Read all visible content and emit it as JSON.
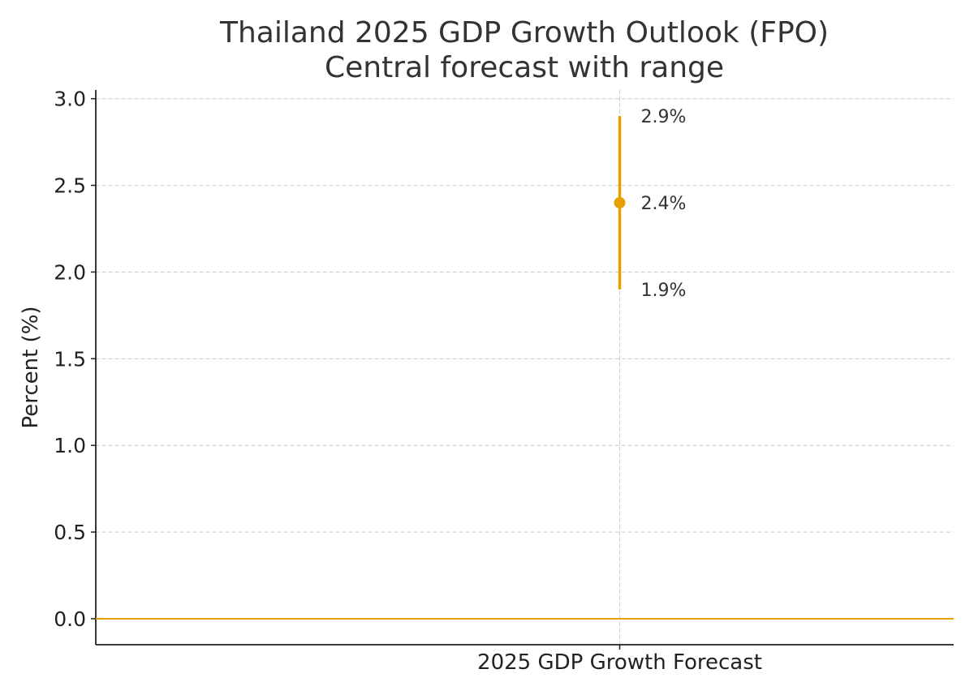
{
  "chart_data": {
    "type": "errorbar",
    "title": "Thailand 2025 GDP Growth Outlook (FPO)",
    "subtitle": "Central forecast with range",
    "xlabel": "2025 GDP Growth Forecast",
    "ylabel": "Percent (%)",
    "ylim": [
      -0.15,
      3.05
    ],
    "yticks": [
      0.0,
      0.5,
      1.0,
      1.5,
      2.0,
      2.5,
      3.0
    ],
    "ytick_labels": [
      "0.0",
      "0.5",
      "1.0",
      "1.5",
      "2.0",
      "2.5",
      "3.0"
    ],
    "grid": true,
    "zero_line": 0.0,
    "series": [
      {
        "name": "2025 GDP Growth Forecast",
        "central": 2.4,
        "low": 1.9,
        "high": 2.9,
        "labels": {
          "central": "2.4%",
          "low": "1.9%",
          "high": "2.9%"
        }
      }
    ],
    "colors": {
      "accent": "#E69F00",
      "grid": "#cccccc",
      "axis": "#222222"
    }
  }
}
